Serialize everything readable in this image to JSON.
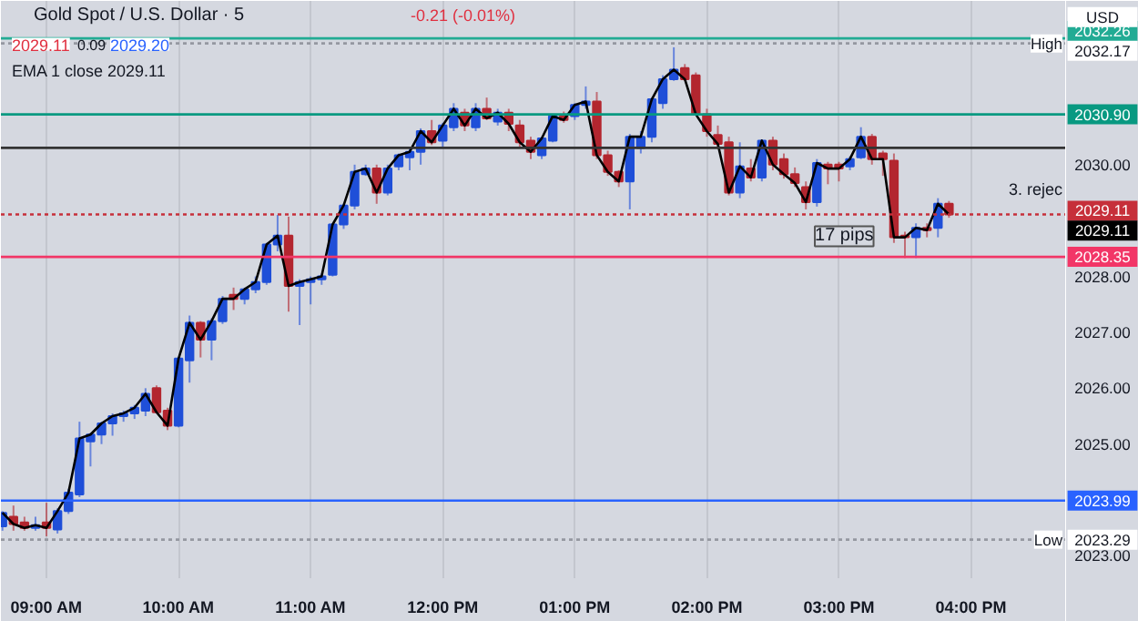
{
  "chart_data": {
    "type": "candlestick",
    "title": "Gold Spot / U.S. Dollar · 5",
    "x": [
      8.6667,
      8.75,
      8.8333,
      8.9167,
      9.0,
      9.0833,
      9.1667,
      9.25,
      9.3333,
      9.4167,
      9.5,
      9.5833,
      9.6667,
      9.75,
      9.8333,
      9.9167,
      10.0,
      10.0833,
      10.1667,
      10.25,
      10.3333,
      10.4167,
      10.5,
      10.5833,
      10.6667,
      10.75,
      10.8333,
      10.9167,
      11.0,
      11.0833,
      11.1667,
      11.25,
      11.3333,
      11.4167,
      11.5,
      11.5833,
      11.6667,
      11.75,
      11.8333,
      11.9167,
      12.0,
      12.0833,
      12.1667,
      12.25,
      12.3333,
      12.4167,
      12.5,
      12.5833,
      12.6667,
      12.75,
      12.8333,
      12.9167,
      13.0,
      13.0833,
      13.1667,
      13.25,
      13.3333,
      13.4167,
      13.5,
      13.5833,
      13.6667,
      13.75,
      13.8333,
      13.9167,
      14.0,
      14.0833,
      14.1667,
      14.25,
      14.3333,
      14.4167,
      14.5,
      14.5833,
      14.6667,
      14.75,
      14.8333,
      14.9167,
      15.0,
      15.0833,
      15.1667,
      15.25,
      15.3333,
      15.4167,
      15.5,
      15.5833,
      15.6667,
      15.75,
      15.8333
    ],
    "ohlc": [
      [
        2023.53,
        2023.8,
        2023.45,
        2023.77
      ],
      [
        2023.7,
        2023.9,
        2023.45,
        2023.57
      ],
      [
        2023.6,
        2023.7,
        2023.45,
        2023.5
      ],
      [
        2023.5,
        2023.7,
        2023.45,
        2023.55
      ],
      [
        2023.6,
        2023.95,
        2023.35,
        2023.5
      ],
      [
        2023.47,
        2023.85,
        2023.4,
        2023.8
      ],
      [
        2023.8,
        2024.2,
        2023.75,
        2024.13
      ],
      [
        2024.1,
        2025.4,
        2024.05,
        2025.1
      ],
      [
        2025.05,
        2025.2,
        2024.6,
        2025.17
      ],
      [
        2025.17,
        2025.4,
        2025.0,
        2025.37
      ],
      [
        2025.37,
        2025.55,
        2025.15,
        2025.5
      ],
      [
        2025.5,
        2025.6,
        2025.4,
        2025.55
      ],
      [
        2025.55,
        2025.7,
        2025.45,
        2025.65
      ],
      [
        2025.6,
        2026.0,
        2025.5,
        2025.9
      ],
      [
        2026.0,
        2026.05,
        2025.55,
        2025.57
      ],
      [
        2025.6,
        2025.65,
        2025.25,
        2025.33
      ],
      [
        2025.33,
        2026.55,
        2025.3,
        2026.53
      ],
      [
        2026.5,
        2027.3,
        2026.1,
        2027.17
      ],
      [
        2027.17,
        2027.2,
        2026.55,
        2026.87
      ],
      [
        2026.87,
        2027.25,
        2026.5,
        2027.2
      ],
      [
        2027.2,
        2027.65,
        2027.15,
        2027.6
      ],
      [
        2027.67,
        2027.8,
        2027.4,
        2027.6
      ],
      [
        2027.6,
        2027.8,
        2027.5,
        2027.77
      ],
      [
        2027.77,
        2028.0,
        2027.7,
        2027.9
      ],
      [
        2027.9,
        2028.6,
        2027.85,
        2028.57
      ],
      [
        2028.57,
        2029.1,
        2028.45,
        2028.73
      ],
      [
        2028.73,
        2029.07,
        2027.37,
        2027.83
      ],
      [
        2027.83,
        2027.95,
        2027.13,
        2027.9
      ],
      [
        2027.9,
        2028.0,
        2027.5,
        2027.95
      ],
      [
        2027.95,
        2028.05,
        2027.85,
        2028.0
      ],
      [
        2028.03,
        2028.95,
        2028.0,
        2028.93
      ],
      [
        2028.93,
        2029.3,
        2028.85,
        2029.27
      ],
      [
        2029.27,
        2030.0,
        2029.2,
        2029.87
      ],
      [
        2029.83,
        2030.0,
        2029.8,
        2029.93
      ],
      [
        2029.93,
        2030.0,
        2029.3,
        2029.5
      ],
      [
        2029.5,
        2030.0,
        2029.45,
        2029.93
      ],
      [
        2029.97,
        2030.2,
        2029.9,
        2030.17
      ],
      [
        2030.13,
        2030.3,
        2029.9,
        2030.23
      ],
      [
        2030.23,
        2030.65,
        2030.0,
        2030.6
      ],
      [
        2030.6,
        2030.8,
        2030.35,
        2030.4
      ],
      [
        2030.43,
        2030.75,
        2030.3,
        2030.7
      ],
      [
        2030.67,
        2031.1,
        2030.6,
        2031.0
      ],
      [
        2030.93,
        2031.0,
        2030.6,
        2030.7
      ],
      [
        2030.67,
        2031.1,
        2030.6,
        2031.0
      ],
      [
        2031.0,
        2031.2,
        2030.8,
        2030.83
      ],
      [
        2030.77,
        2031.0,
        2030.7,
        2030.93
      ],
      [
        2030.93,
        2031.0,
        2030.6,
        2030.73
      ],
      [
        2030.7,
        2030.8,
        2030.3,
        2030.4
      ],
      [
        2030.43,
        2030.5,
        2030.1,
        2030.23
      ],
      [
        2030.17,
        2030.5,
        2030.1,
        2030.47
      ],
      [
        2030.43,
        2030.9,
        2030.4,
        2030.87
      ],
      [
        2030.87,
        2030.95,
        2030.75,
        2030.8
      ],
      [
        2030.87,
        2031.1,
        2030.8,
        2031.07
      ],
      [
        2031.07,
        2031.4,
        2031.0,
        2031.13
      ],
      [
        2031.13,
        2031.3,
        2030.1,
        2030.17
      ],
      [
        2030.17,
        2030.25,
        2029.8,
        2029.87
      ],
      [
        2029.87,
        2029.9,
        2029.6,
        2029.7
      ],
      [
        2029.7,
        2030.55,
        2029.2,
        2030.5
      ],
      [
        2030.3,
        2030.6,
        2030.2,
        2030.5
      ],
      [
        2030.5,
        2031.2,
        2030.4,
        2031.17
      ],
      [
        2031.1,
        2031.6,
        2031.0,
        2031.53
      ],
      [
        2031.53,
        2032.1,
        2031.5,
        2031.7
      ],
      [
        2031.73,
        2031.8,
        2031.5,
        2031.53
      ],
      [
        2031.6,
        2031.65,
        2030.9,
        2030.9
      ],
      [
        2030.9,
        2031.0,
        2030.5,
        2030.6
      ],
      [
        2030.53,
        2030.7,
        2030.3,
        2030.37
      ],
      [
        2030.4,
        2030.5,
        2029.45,
        2029.5
      ],
      [
        2029.5,
        2030.4,
        2029.4,
        2029.97
      ],
      [
        2029.93,
        2030.1,
        2029.7,
        2029.77
      ],
      [
        2029.77,
        2030.45,
        2029.7,
        2030.43
      ],
      [
        2030.43,
        2030.5,
        2029.9,
        2030.0
      ],
      [
        2030.1,
        2030.2,
        2029.75,
        2029.83
      ],
      [
        2029.83,
        2029.95,
        2029.6,
        2029.67
      ],
      [
        2029.6,
        2029.7,
        2029.2,
        2029.33
      ],
      [
        2029.33,
        2030.1,
        2029.25,
        2030.03
      ],
      [
        2030.0,
        2030.05,
        2029.65,
        2029.93
      ],
      [
        2030.0,
        2030.05,
        2029.7,
        2029.93
      ],
      [
        2029.97,
        2030.15,
        2029.9,
        2030.1
      ],
      [
        2030.13,
        2030.67,
        2030.1,
        2030.5
      ],
      [
        2030.5,
        2030.55,
        2030.0,
        2030.1
      ],
      [
        2030.2,
        2030.25,
        2029.8,
        2030.1
      ],
      [
        2030.07,
        2030.2,
        2028.6,
        2028.7
      ],
      [
        2028.73,
        2028.8,
        2028.33,
        2028.7
      ],
      [
        2028.7,
        2028.95,
        2028.33,
        2028.87
      ],
      [
        2028.87,
        2028.95,
        2028.7,
        2028.83
      ],
      [
        2028.87,
        2029.4,
        2028.7,
        2029.3
      ],
      [
        2029.3,
        2029.35,
        2029.05,
        2029.11
      ]
    ],
    "colors": [
      "#1f4fd8",
      "#b3262f",
      "#b3262f",
      "#1f4fd8",
      "#b3262f",
      "#1f4fd8",
      "#1f4fd8",
      "#1f4fd8",
      "#1f4fd8",
      "#1f4fd8",
      "#1f4fd8",
      "#1f4fd8",
      "#1f4fd8",
      "#1f4fd8",
      "#b3262f",
      "#b3262f",
      "#1f4fd8",
      "#1f4fd8",
      "#b3262f",
      "#1f4fd8",
      "#1f4fd8",
      "#b3262f",
      "#1f4fd8",
      "#1f4fd8",
      "#1f4fd8",
      "#1f4fd8",
      "#b3262f",
      "#1f4fd8",
      "#1f4fd8",
      "#1f4fd8",
      "#1f4fd8",
      "#1f4fd8",
      "#1f4fd8",
      "#1f4fd8",
      "#b3262f",
      "#1f4fd8",
      "#1f4fd8",
      "#1f4fd8",
      "#1f4fd8",
      "#b3262f",
      "#1f4fd8",
      "#1f4fd8",
      "#b3262f",
      "#1f4fd8",
      "#b3262f",
      "#1f4fd8",
      "#b3262f",
      "#b3262f",
      "#b3262f",
      "#1f4fd8",
      "#1f4fd8",
      "#b3262f",
      "#1f4fd8",
      "#1f4fd8",
      "#b3262f",
      "#b3262f",
      "#b3262f",
      "#1f4fd8",
      "#1f4fd8",
      "#1f4fd8",
      "#1f4fd8",
      "#1f4fd8",
      "#b3262f",
      "#b3262f",
      "#b3262f",
      "#b3262f",
      "#b3262f",
      "#1f4fd8",
      "#b3262f",
      "#1f4fd8",
      "#b3262f",
      "#b3262f",
      "#b3262f",
      "#b3262f",
      "#1f4fd8",
      "#b3262f",
      "#b3262f",
      "#1f4fd8",
      "#1f4fd8",
      "#b3262f",
      "#b3262f",
      "#b3262f",
      "#b3262f",
      "#1f4fd8",
      "#b3262f",
      "#1f4fd8",
      "#b3262f"
    ],
    "series": [
      {
        "type": "line",
        "color": "#000000",
        "values": [
          2023.77,
          2023.57,
          2023.5,
          2023.55,
          2023.5,
          2023.8,
          2024.13,
          2025.1,
          2025.17,
          2025.37,
          2025.5,
          2025.55,
          2025.65,
          2025.9,
          2025.57,
          2025.33,
          2026.53,
          2027.17,
          2026.87,
          2027.2,
          2027.6,
          2027.6,
          2027.77,
          2027.9,
          2028.57,
          2028.73,
          2027.83,
          2027.9,
          2027.95,
          2028.0,
          2028.93,
          2029.27,
          2029.87,
          2029.93,
          2029.5,
          2029.93,
          2030.17,
          2030.23,
          2030.6,
          2030.4,
          2030.7,
          2031.0,
          2030.7,
          2031.0,
          2030.83,
          2030.93,
          2030.73,
          2030.4,
          2030.23,
          2030.47,
          2030.87,
          2030.8,
          2031.07,
          2031.13,
          2030.17,
          2029.87,
          2029.7,
          2030.5,
          2030.5,
          2031.17,
          2031.53,
          2031.7,
          2031.53,
          2030.9,
          2030.6,
          2030.37,
          2029.5,
          2029.97,
          2029.77,
          2030.43,
          2030.0,
          2029.83,
          2029.67,
          2029.33,
          2030.03,
          2029.93,
          2029.93,
          2030.1,
          2030.5,
          2030.1,
          2030.1,
          2028.7,
          2028.7,
          2028.87,
          2028.83,
          2029.3,
          2029.11
        ]
      }
    ],
    "xlim": [
      8.655,
      16.72
    ],
    "xticks": [
      {
        "value": 9,
        "label": "09:00 AM"
      },
      {
        "value": 10,
        "label": "10:00 AM"
      },
      {
        "value": 11,
        "label": "11:00 AM"
      },
      {
        "value": 12,
        "label": "12:00 PM"
      },
      {
        "value": 13,
        "label": "01:00 PM"
      },
      {
        "value": 14,
        "label": "02:00 PM"
      },
      {
        "value": 15,
        "label": "03:00 PM"
      },
      {
        "value": 16,
        "label": "04:00 PM"
      }
    ],
    "ylim": [
      2022.6,
      2032.93
    ],
    "yticks": [
      {
        "value": 2023,
        "label": "2023.00"
      },
      {
        "value": 2025,
        "label": "2025.00"
      },
      {
        "value": 2026,
        "label": "2026.00"
      },
      {
        "value": 2027,
        "label": "2027.00"
      },
      {
        "value": 2028,
        "label": "2028.00"
      },
      {
        "value": 2030,
        "label": "2030.00"
      }
    ],
    "grid": "x",
    "ref_lines": [
      {
        "axis": "y",
        "value": 2032.26,
        "label": "2032.26",
        "color": "#22ab94"
      },
      {
        "axis": "y",
        "value": 2032.17,
        "label": "2032.17",
        "color": "#9598a1",
        "line_style": "dotted"
      },
      {
        "axis": "y",
        "value": 2030.9,
        "label": "2030.90",
        "color": "#089981"
      },
      {
        "axis": "y",
        "value": 2030.3,
        "label": null,
        "color": "#333333"
      },
      {
        "axis": "y",
        "value": 2029.11,
        "label": "2029.11",
        "color": "#c62f3a",
        "line_style": "dotted"
      },
      {
        "axis": "y",
        "value": 2028.35,
        "label": "2028.35",
        "color": "#f23667"
      },
      {
        "axis": "y",
        "value": 2023.99,
        "label": "2023.99",
        "color": "#2962ff"
      },
      {
        "axis": "y",
        "value": 2023.29,
        "label": "2023.29",
        "color": "#9598a1",
        "line_style": "dotted"
      }
    ],
    "annotations": [
      "2029.11",
      "0.09",
      "2029.20",
      "-0.21 (-0.01%)",
      "EMA 1 close  2029.11",
      "USD",
      "2029.11",
      "High",
      "Low",
      "3. rejec",
      {
        "text": "17 pips",
        "x": 15.04,
        "y": 2028.72
      }
    ]
  }
}
